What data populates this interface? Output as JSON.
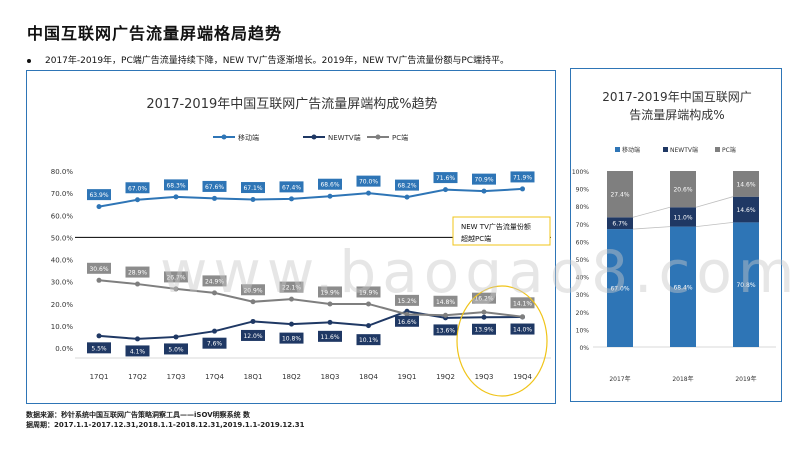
{
  "page": {
    "title": "中国互联网广告流量屏端格局趋势",
    "bullet": "2017年-2019年，PC端广告流量持续下降，NEW TV广告逐渐增长。2019年，NEW TV广告流量份额与PC端持平。",
    "source_line1": "数据来源：秒针系统中国互联网广告策略洞察工具——iSOV明察系统  数",
    "source_line2": "据周期：2017.1.1-2017.12.31,2018.1.1-2018.12.31,2019.1.1-2019.12.31",
    "watermark": "www.baogao8.com"
  },
  "chart_data": [
    {
      "type": "line",
      "title": "2017-2019年中国互联网广告流量屏端构成%趋势",
      "categories": [
        "17Q1",
        "17Q2",
        "17Q3",
        "17Q4",
        "18Q1",
        "18Q2",
        "18Q3",
        "18Q4",
        "19Q1",
        "19Q2",
        "19Q3",
        "19Q4"
      ],
      "series": [
        {
          "name": "移动端",
          "color": "#2e75b6",
          "values": [
            63.9,
            67.0,
            68.3,
            67.6,
            67.1,
            67.4,
            68.6,
            70.0,
            68.2,
            71.6,
            70.9,
            71.9
          ],
          "labels": [
            "63.9%",
            "67.0%",
            "68.3%",
            "67.6%",
            "67.1%",
            "67.4%",
            "68.6%",
            "70.0%",
            "68.2%",
            "71.6%",
            "70.9%",
            "71.9%"
          ]
        },
        {
          "name": "NEWTV端",
          "color": "#1f3864",
          "values": [
            5.5,
            4.1,
            5.0,
            7.6,
            12.0,
            10.8,
            11.6,
            10.1,
            16.6,
            13.6,
            13.9,
            14.0
          ],
          "labels": [
            "5.5%",
            "4.1%",
            "5.0%",
            "7.6%",
            "12.0%",
            "10.8%",
            "11.6%",
            "10.1%",
            "16.6%",
            "13.6%",
            "13.9%",
            "14.0%"
          ]
        },
        {
          "name": "PC端",
          "color": "#7f7f7f",
          "values": [
            30.6,
            28.9,
            26.7,
            24.9,
            20.9,
            22.1,
            19.9,
            19.9,
            15.2,
            14.8,
            16.2,
            14.1
          ],
          "labels": [
            "30.6%",
            "28.9%",
            "26.7%",
            "24.9%",
            "20.9%",
            "22.1%",
            "19.9%",
            "19.9%",
            "15.2%",
            "14.8%",
            "16.2%",
            "14.1%"
          ]
        }
      ],
      "yticks": [
        "0.0%",
        "10.0%",
        "20.0%",
        "30.0%",
        "40.0%",
        "50.0%",
        "60.0%",
        "70.0%",
        "80.0%"
      ],
      "ylim": [
        0,
        80
      ],
      "reference_line": 50,
      "annotation": [
        "NEW TV广告流量份额",
        "超越PC端"
      ],
      "legend_position": "top"
    },
    {
      "type": "bar",
      "stacked": true,
      "title": [
        "2017-2019年中国互联网广",
        "告流量屏端构成%"
      ],
      "categories": [
        "2017年",
        "2018年",
        "2019年"
      ],
      "series": [
        {
          "name": "移动端",
          "color": "#2e75b6",
          "values": [
            67.0,
            68.4,
            70.8
          ],
          "labels": [
            "67.0%",
            "68.4%",
            "70.8%"
          ]
        },
        {
          "name": "NEWTV端",
          "color": "#1f3864",
          "values": [
            6.7,
            11.0,
            14.6
          ],
          "labels": [
            "6.7%",
            "11.0%",
            "14.6%"
          ]
        },
        {
          "name": "PC端",
          "color": "#7f7f7f",
          "values": [
            27.4,
            20.6,
            14.6
          ],
          "labels": [
            "27.4%",
            "20.6%",
            "14.6%"
          ]
        }
      ],
      "yticks": [
        "0%",
        "10%",
        "20%",
        "30%",
        "40%",
        "50%",
        "60%",
        "70%",
        "80%",
        "90%",
        "100%"
      ],
      "ylim": [
        0,
        100
      ],
      "legend_position": "top"
    }
  ]
}
